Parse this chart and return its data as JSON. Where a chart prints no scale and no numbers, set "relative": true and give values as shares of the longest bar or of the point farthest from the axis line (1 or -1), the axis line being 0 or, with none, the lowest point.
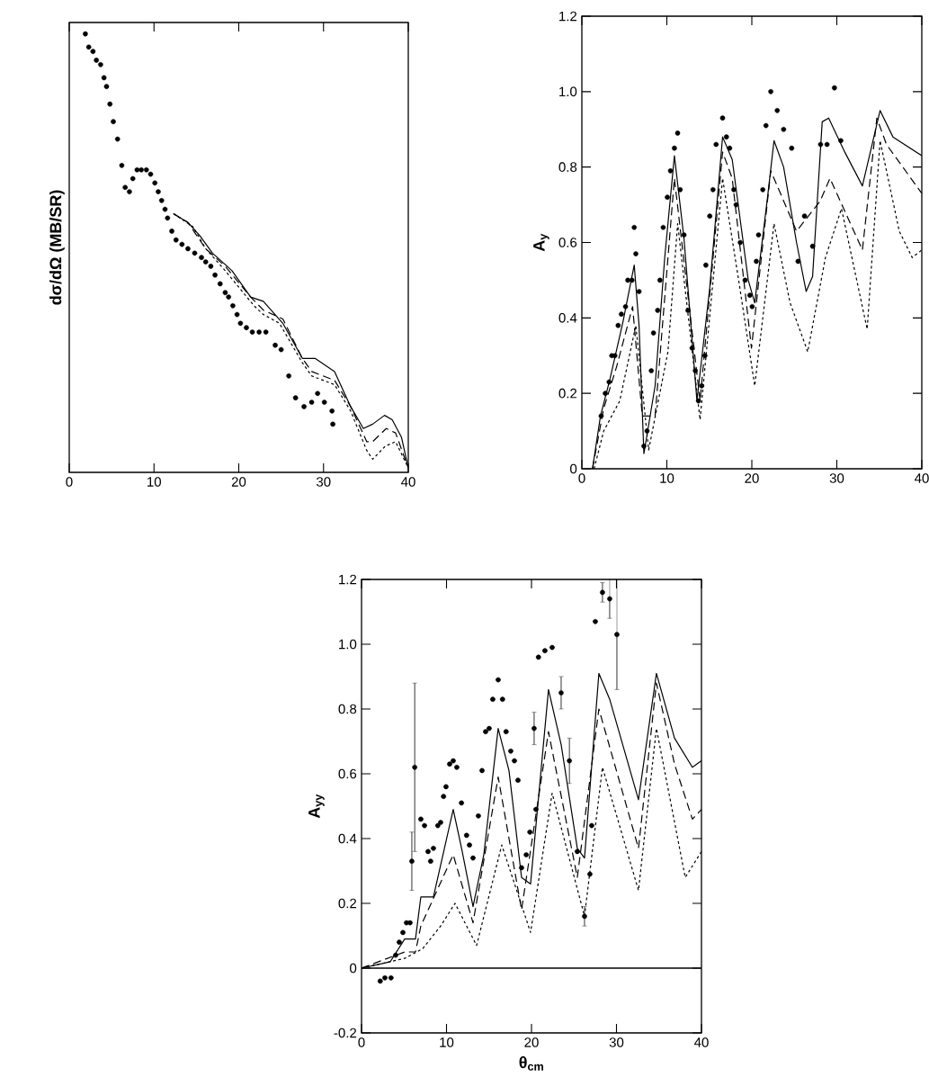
{
  "chart_data": [
    {
      "type": "scatter",
      "relative": true,
      "xlim": [
        0,
        40
      ],
      "xticks": [
        0,
        10,
        20,
        30,
        40
      ],
      "ylabel": "dσ/dΩ (MB/SR)",
      "series": [
        {
          "type": "scatter",
          "marker": "circle",
          "color": "#000000",
          "x": [
            1.9,
            2.3,
            2.8,
            3.2,
            3.7,
            4.1,
            4.4,
            4.8,
            5.2,
            5.7,
            6.2,
            6.6,
            7.1,
            7.5,
            8.0,
            8.5,
            9.1,
            9.6,
            10.1,
            10.5,
            10.9,
            11.3,
            11.6,
            12.1,
            12.6,
            13.3,
            14.0,
            14.8,
            15.6,
            16.1,
            16.7,
            17.2,
            17.8,
            18.4,
            18.8,
            19.3,
            19.8,
            20.2,
            20.9,
            21.6,
            22.4,
            23.2,
            24.3,
            25.0,
            25.9,
            26.7,
            27.7,
            28.6,
            29.3,
            30.1,
            31.0,
            31.1
          ],
          "values": [
            1.0,
            0.97,
            0.96,
            0.94,
            0.93,
            0.9,
            0.88,
            0.84,
            0.8,
            0.76,
            0.7,
            0.65,
            0.64,
            0.67,
            0.69,
            0.69,
            0.69,
            0.68,
            0.66,
            0.64,
            0.62,
            0.6,
            0.58,
            0.55,
            0.53,
            0.52,
            0.51,
            0.5,
            0.49,
            0.48,
            0.47,
            0.45,
            0.43,
            0.41,
            0.4,
            0.38,
            0.36,
            0.34,
            0.33,
            0.32,
            0.32,
            0.32,
            0.29,
            0.28,
            0.22,
            0.17,
            0.15,
            0.16,
            0.18,
            0.16,
            0.14,
            0.11
          ]
        },
        {
          "type": "line",
          "marker": "none",
          "line_style": "solid",
          "color": "#000000",
          "x": [
            12.3,
            14.0,
            15.4,
            16.9,
            19.2,
            21.4,
            22.9,
            25.2,
            27.5,
            29.0,
            31.3,
            33.2,
            34.7,
            35.8,
            37.2,
            38.1,
            39.2,
            40
          ],
          "values": [
            0.59,
            0.57,
            0.54,
            0.5,
            0.46,
            0.4,
            0.39,
            0.34,
            0.26,
            0.26,
            0.23,
            0.15,
            0.1,
            0.11,
            0.13,
            0.12,
            0.08,
            0.01
          ]
        },
        {
          "type": "line",
          "marker": "none",
          "line_style": "dashed",
          "color": "#000000",
          "x": [
            12.3,
            14.0,
            16.1,
            18.4,
            21.4,
            22.9,
            25.2,
            27.5,
            28.6,
            31.3,
            33.2,
            35.1,
            35.8,
            37.4,
            38.5,
            40
          ],
          "values": [
            0.59,
            0.57,
            0.51,
            0.47,
            0.4,
            0.37,
            0.35,
            0.26,
            0.23,
            0.21,
            0.15,
            0.07,
            0.07,
            0.1,
            0.09,
            0.01
          ]
        },
        {
          "type": "line",
          "marker": "none",
          "line_style": "dotted",
          "color": "#000000",
          "x": [
            12.3,
            14.6,
            16.1,
            18.4,
            21.8,
            22.9,
            24.8,
            27.5,
            28.6,
            31.3,
            33.2,
            35.1,
            35.8,
            37.3,
            38.5,
            40
          ],
          "values": [
            0.59,
            0.56,
            0.51,
            0.46,
            0.38,
            0.36,
            0.34,
            0.25,
            0.22,
            0.2,
            0.14,
            0.05,
            0.03,
            0.06,
            0.07,
            0.01
          ]
        }
      ]
    },
    {
      "type": "scatter",
      "xlim": [
        0,
        40
      ],
      "xticks": [
        0,
        10,
        20,
        30,
        40
      ],
      "ylim": [
        0,
        1.2
      ],
      "yticks": [
        0,
        0.2,
        0.4,
        0.6,
        0.8,
        {
          "value": 1.0,
          "label": "1.0"
        },
        1.2
      ],
      "ylabel": "A$_{y}$",
      "series": [
        {
          "type": "scatter",
          "marker": "circle",
          "color": "#000000",
          "x": [
            2.27,
            2.76,
            3.21,
            3.52,
            3.89,
            4.27,
            4.65,
            5.14,
            5.41,
            5.9,
            6.16,
            6.35,
            6.73,
            7.3,
            7.67,
            8.17,
            8.43,
            8.92,
            9.19,
            9.57,
            10.06,
            10.43,
            10.89,
            11.27,
            11.57,
            12.02,
            12.48,
            12.97,
            13.35,
            13.72,
            14.1,
            14.48,
            14.59,
            15.05,
            15.43,
            15.8,
            16.56,
            17.01,
            17.39,
            17.88,
            18.15,
            18.64,
            19.21,
            19.77,
            20.04,
            20.53,
            20.79,
            21.29,
            21.66,
            22.23,
            22.99,
            23.74,
            24.69,
            25.44,
            26.2,
            27.15,
            28.09,
            28.85,
            29.72,
            30.47
          ],
          "values": [
            0.14,
            0.2,
            0.23,
            0.3,
            0.3,
            0.38,
            0.41,
            0.43,
            0.5,
            0.5,
            0.64,
            0.57,
            0.47,
            0.06,
            0.1,
            0.26,
            0.36,
            0.42,
            0.5,
            0.64,
            0.72,
            0.79,
            0.85,
            0.89,
            0.74,
            0.62,
            0.42,
            0.32,
            0.26,
            0.18,
            0.22,
            0.3,
            0.54,
            0.67,
            0.74,
            0.86,
            0.93,
            0.88,
            0.85,
            0.74,
            0.7,
            0.6,
            0.5,
            0.46,
            0.43,
            0.55,
            0.62,
            0.74,
            0.91,
            1.0,
            0.95,
            0.9,
            0.85,
            0.55,
            0.67,
            0.59,
            0.86,
            0.86,
            1.01,
            0.87
          ]
        },
        {
          "type": "line",
          "marker": "none",
          "line_style": "solid",
          "color": "#000000",
          "x": [
            1.25,
            2.19,
            3.33,
            4.84,
            6.16,
            6.73,
            7.3,
            8.62,
            9.75,
            10.89,
            12.02,
            13.54,
            15.05,
            16.56,
            17.69,
            19.58,
            20.34,
            21.85,
            22.61,
            23.74,
            25.26,
            26.39,
            27.15,
            28.28,
            29.04,
            30.93,
            33.01,
            35.09,
            36.6,
            40
          ],
          "values": [
            0,
            0.14,
            0.24,
            0.39,
            0.54,
            0.38,
            0.04,
            0.22,
            0.56,
            0.83,
            0.61,
            0.18,
            0.48,
            0.88,
            0.82,
            0.5,
            0.44,
            0.72,
            0.87,
            0.8,
            0.6,
            0.47,
            0.51,
            0.92,
            0.93,
            0.84,
            0.75,
            0.95,
            0.88,
            0.83
          ]
        },
        {
          "type": "line",
          "marker": "none",
          "line_style": "dashed",
          "color": "#000000",
          "x": [
            1.25,
            2.57,
            4.08,
            5.97,
            7.11,
            8.62,
            10.89,
            13.91,
            16.56,
            17.69,
            19.96,
            22.23,
            25.26,
            28.05,
            29.19,
            33.01,
            34.71,
            35.84,
            40
          ],
          "values": [
            0,
            0.16,
            0.27,
            0.43,
            0.14,
            0.14,
            0.77,
            0.18,
            0.84,
            0.77,
            0.32,
            0.79,
            0.63,
            0.71,
            0.77,
            0.58,
            0.93,
            0.86,
            0.73
          ]
        },
        {
          "type": "line",
          "marker": "none",
          "line_style": "dotted",
          "color": "#000000",
          "x": [
            1.44,
            2.57,
            4.46,
            6.35,
            7.86,
            10.13,
            11.27,
            13.91,
            16.56,
            18.45,
            20.34,
            22.61,
            24.5,
            26.58,
            28.66,
            30.55,
            33.57,
            35.09,
            37.35,
            38.87,
            40
          ],
          "values": [
            0,
            0.1,
            0.18,
            0.38,
            0.05,
            0.31,
            0.65,
            0.13,
            0.77,
            0.5,
            0.22,
            0.65,
            0.44,
            0.31,
            0.56,
            0.69,
            0.37,
            0.87,
            0.63,
            0.56,
            0.58
          ]
        }
      ]
    },
    {
      "type": "scatter",
      "xlim": [
        0,
        40
      ],
      "xticks": [
        0,
        10,
        20,
        30,
        40
      ],
      "ylim": [
        -0.2,
        1.2
      ],
      "yticks": [
        -0.2,
        0,
        0.2,
        0.4,
        0.6,
        0.8,
        {
          "value": 1.0,
          "label": "1.0"
        },
        1.2
      ],
      "xlabel": "θ$_{cm}$",
      "ylabel": "A$_{yy}$",
      "ref_lines": [
        {
          "axis": "y",
          "value": 0,
          "color": "#000000"
        }
      ],
      "series": [
        {
          "type": "scatter",
          "marker": "circle",
          "color": "#000000",
          "x": [
            2.2,
            2.75,
            3.47,
            4.02,
            4.44,
            4.87,
            5.29,
            5.71,
            5.92,
            6.26,
            6.98,
            7.41,
            7.83,
            8.13,
            8.46,
            8.97,
            9.31,
            9.65,
            9.94,
            10.37,
            10.79,
            11.21,
            11.76,
            12.36,
            12.7,
            13.12,
            13.75,
            14.18,
            14.6,
            15.02,
            15.44,
            16.08,
            16.59,
            17.01,
            17.56,
            17.99,
            18.41,
            18.83,
            19.38,
            19.81,
            20.31,
            20.52,
            20.82,
            21.58,
            22.43,
            23.49,
            24.46,
            25.39,
            26.24,
            26.87,
            27.08,
            27.51,
            28.35,
            29.2,
            30.05
          ],
          "values": [
            -0.04,
            -0.03,
            -0.03,
            0.04,
            0.08,
            0.11,
            0.14,
            0.14,
            0.33,
            0.62,
            0.46,
            0.44,
            0.36,
            0.33,
            0.37,
            0.44,
            0.45,
            0.53,
            0.56,
            0.63,
            0.64,
            0.62,
            0.51,
            0.41,
            0.38,
            0.34,
            0.47,
            0.61,
            0.73,
            0.74,
            0.83,
            0.89,
            0.83,
            0.73,
            0.67,
            0.64,
            0.58,
            0.31,
            0.35,
            0.42,
            0.74,
            0.49,
            0.96,
            0.98,
            0.99,
            0.85,
            0.64,
            0.36,
            0.16,
            0.29,
            0.44,
            1.07,
            1.16,
            1.14,
            1.03
          ],
          "errors": [
            null,
            null,
            null,
            null,
            null,
            null,
            null,
            null,
            0.09,
            0.26,
            null,
            null,
            null,
            null,
            null,
            null,
            null,
            null,
            null,
            null,
            null,
            null,
            null,
            null,
            null,
            null,
            null,
            null,
            null,
            null,
            null,
            null,
            null,
            null,
            null,
            null,
            null,
            null,
            null,
            null,
            0.05,
            null,
            null,
            null,
            null,
            0.05,
            0.07,
            null,
            0.03,
            null,
            null,
            null,
            0.03,
            0.06,
            0.17
          ]
        },
        {
          "type": "line",
          "marker": "none",
          "line_style": "solid",
          "color": "#000000",
          "x": [
            0,
            3.39,
            5.08,
            6.35,
            6.98,
            8.46,
            10.79,
            11.85,
            13.12,
            14.39,
            16.08,
            17.35,
            18.83,
            19.89,
            22.0,
            23.49,
            25.39,
            26.24,
            27.93,
            29.2,
            32.59,
            34.7,
            36.83,
            38.93,
            40
          ],
          "values": [
            0,
            0.02,
            0.09,
            0.09,
            0.22,
            0.22,
            0.49,
            0.36,
            0.19,
            0.35,
            0.74,
            0.61,
            0.28,
            0.26,
            0.86,
            0.69,
            0.37,
            0.34,
            0.91,
            0.83,
            0.52,
            0.91,
            0.71,
            0.62,
            0.64
          ]
        },
        {
          "type": "line",
          "marker": "none",
          "line_style": "dashed",
          "color": "#000000",
          "x": [
            0,
            5.08,
            6.35,
            6.98,
            10.79,
            13.12,
            16.08,
            18.83,
            22.0,
            25.39,
            27.93,
            32.59,
            34.7,
            36.83,
            38.93,
            40
          ],
          "values": [
            0,
            0.05,
            0.05,
            0.13,
            0.35,
            0.14,
            0.59,
            0.18,
            0.73,
            0.28,
            0.8,
            0.37,
            0.88,
            0.63,
            0.46,
            0.49
          ]
        },
        {
          "type": "line",
          "marker": "none",
          "line_style": "dotted",
          "color": "#000000",
          "x": [
            0,
            5.08,
            7.19,
            9.31,
            11.0,
            13.54,
            16.5,
            19.89,
            22.43,
            26.24,
            28.35,
            32.59,
            34.7,
            38.09,
            40
          ],
          "values": [
            0,
            0.03,
            0.06,
            0.13,
            0.2,
            0.07,
            0.38,
            0.11,
            0.54,
            0.16,
            0.62,
            0.24,
            0.74,
            0.28,
            0.36
          ]
        }
      ]
    }
  ]
}
